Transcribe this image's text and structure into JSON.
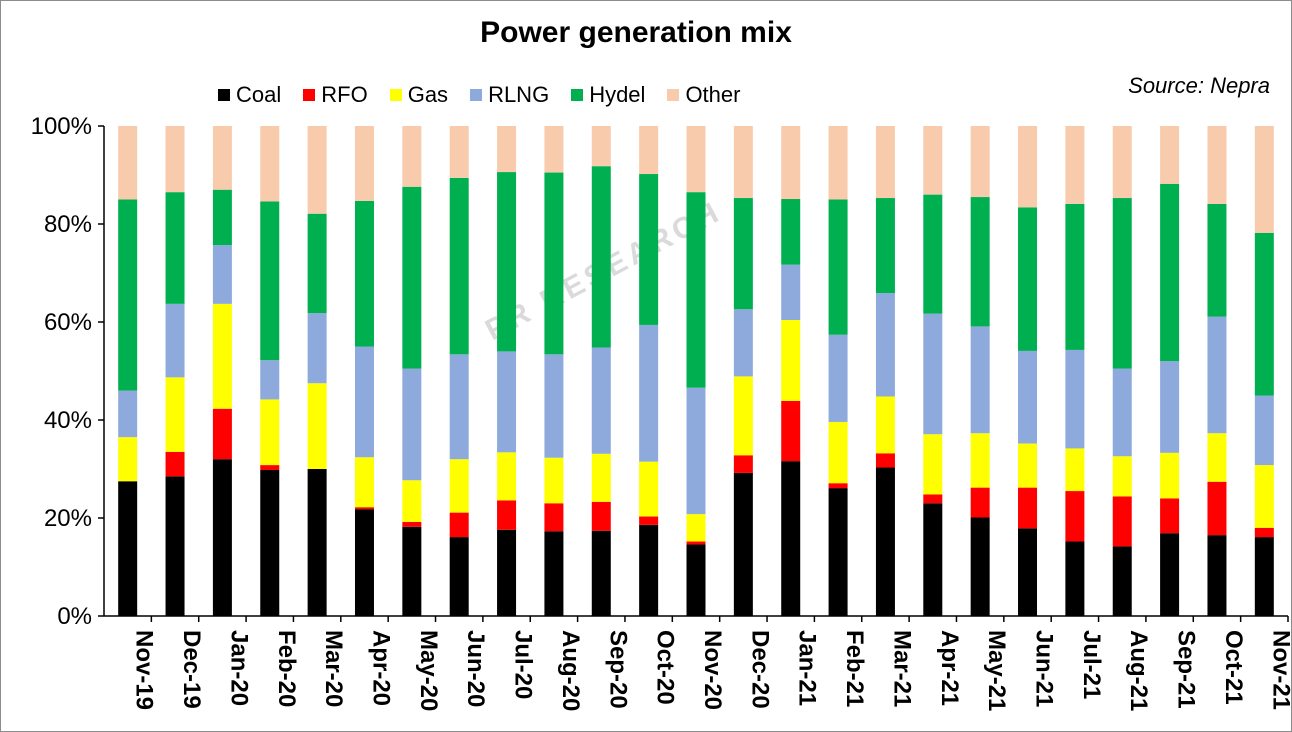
{
  "chart_data": {
    "type": "bar",
    "stacked": true,
    "title": "Power generation mix",
    "source": "Source: Nepra",
    "watermark": "PR RESEARCH",
    "ylim": [
      0,
      100
    ],
    "yticks": [
      "0%",
      "20%",
      "40%",
      "60%",
      "80%",
      "100%"
    ],
    "legend_position": "top",
    "categories": [
      "Nov-19",
      "Dec-19",
      "Jan-20",
      "Feb-20",
      "Mar-20",
      "Apr-20",
      "May-20",
      "Jun-20",
      "Jul-20",
      "Aug-20",
      "Sep-20",
      "Oct-20",
      "Nov-20",
      "Dec-20",
      "Jan-21",
      "Feb-21",
      "Mar-21",
      "Apr-21",
      "May-21",
      "Jun-21",
      "Jul-21",
      "Aug-21",
      "Sep-21",
      "Oct-21",
      "Nov-21"
    ],
    "series": [
      {
        "name": "Coal",
        "color": "#000000",
        "values": [
          27.5,
          28.5,
          32.0,
          29.8,
          30.0,
          21.8,
          18.2,
          16.1,
          17.6,
          17.3,
          17.4,
          18.6,
          14.6,
          29.2,
          31.6,
          26.1,
          30.3,
          23.0,
          20.1,
          17.9,
          15.2,
          14.2,
          16.9,
          16.5,
          16.1
        ]
      },
      {
        "name": "RFO",
        "color": "#ff0000",
        "values": [
          0.0,
          5.0,
          10.3,
          1.0,
          0.0,
          0.4,
          1.0,
          5.0,
          6.0,
          5.7,
          5.9,
          1.7,
          0.6,
          3.6,
          12.3,
          1.0,
          2.9,
          1.8,
          6.1,
          8.3,
          10.3,
          10.2,
          7.1,
          10.9,
          1.9
        ]
      },
      {
        "name": "Gas",
        "color": "#ffff00",
        "values": [
          9.0,
          15.2,
          21.4,
          13.4,
          17.5,
          10.2,
          8.5,
          10.9,
          9.8,
          9.3,
          9.8,
          11.2,
          5.6,
          16.1,
          16.5,
          12.5,
          11.6,
          12.3,
          11.1,
          9.0,
          8.7,
          8.2,
          9.3,
          9.9,
          12.8
        ]
      },
      {
        "name": "RLNG",
        "color": "#8eaadc",
        "values": [
          9.5,
          15.0,
          12.0,
          8.0,
          14.3,
          22.6,
          22.8,
          21.4,
          20.6,
          21.1,
          21.7,
          27.9,
          25.8,
          13.7,
          11.3,
          17.8,
          21.1,
          24.6,
          21.8,
          18.9,
          20.1,
          17.9,
          18.7,
          23.8,
          14.2
        ]
      },
      {
        "name": "Hydel",
        "color": "#00b050",
        "values": [
          39.0,
          22.8,
          11.3,
          32.4,
          20.3,
          29.7,
          37.1,
          36.0,
          36.6,
          37.1,
          37.0,
          30.8,
          39.9,
          22.7,
          13.4,
          27.6,
          19.4,
          24.3,
          26.4,
          29.3,
          29.8,
          34.8,
          36.2,
          23.0,
          33.2
        ]
      },
      {
        "name": "Other",
        "color": "#f8cbad",
        "values": [
          15.0,
          13.5,
          13.0,
          15.4,
          17.9,
          15.3,
          12.4,
          10.6,
          9.4,
          9.5,
          8.2,
          9.8,
          13.5,
          14.7,
          14.9,
          15.0,
          14.7,
          14.0,
          14.5,
          16.6,
          15.9,
          14.7,
          11.8,
          15.9,
          21.8
        ]
      }
    ]
  }
}
